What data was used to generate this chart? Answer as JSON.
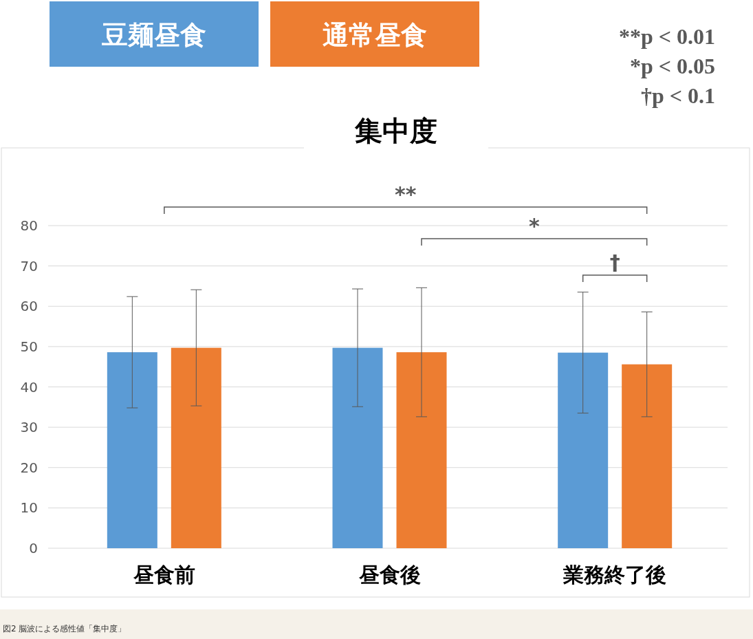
{
  "chart_data": {
    "type": "bar",
    "title": "集中度",
    "categories": [
      "昼食前",
      "昼食後",
      "業務終了後"
    ],
    "series": [
      {
        "name": "豆麺昼食",
        "color": "#5b9bd5",
        "values": [
          48.6,
          49.7,
          48.5
        ],
        "errors": [
          13.8,
          14.6,
          15
        ]
      },
      {
        "name": "通常昼食",
        "color": "#ed7d31",
        "values": [
          49.7,
          48.6,
          45.6
        ],
        "errors": [
          14.4,
          16,
          13
        ]
      }
    ],
    "ylim": [
      0,
      80
    ],
    "yticks": [
      0,
      10,
      20,
      30,
      40,
      50,
      60,
      70,
      80
    ],
    "grid": "y",
    "legend": "top",
    "annotations": [
      "**",
      "*",
      "†",
      "**p < 0.01",
      "*p < 0.05",
      "†p < 0.1",
      "図2 脳波による感性値「集中度」"
    ]
  }
}
